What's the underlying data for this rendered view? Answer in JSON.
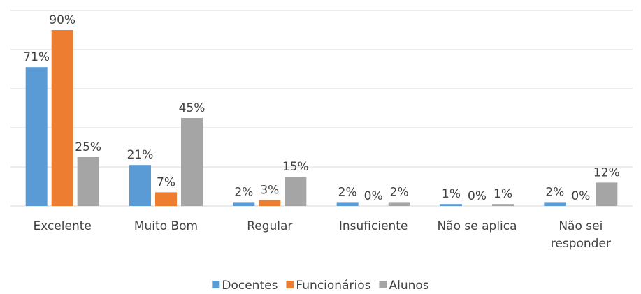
{
  "chart_data": {
    "type": "bar",
    "categories": [
      "Excelente",
      "Muito Bom",
      "Regular",
      "Insuficiente",
      "Não se aplica",
      "Não sei responder"
    ],
    "series": [
      {
        "name": "Docentes",
        "color": "#5b9bd5",
        "values": [
          71,
          21,
          2,
          2,
          1,
          2
        ],
        "value_labels": [
          "71%",
          "21%",
          "2%",
          "2%",
          "1%",
          "2%"
        ]
      },
      {
        "name": "Funcionários",
        "color": "#ed7d31",
        "values": [
          90,
          7,
          3,
          0,
          0,
          0
        ],
        "value_labels": [
          "90%",
          "7%",
          "3%",
          "0%",
          "0%",
          "0%"
        ]
      },
      {
        "name": "Alunos",
        "color": "#a5a5a5",
        "values": [
          25,
          45,
          15,
          2,
          1,
          12
        ],
        "value_labels": [
          "25%",
          "45%",
          "15%",
          "2%",
          "1%",
          "12%"
        ]
      }
    ],
    "ylim": [
      0,
      100
    ],
    "yticks": [
      0,
      20,
      40,
      60,
      80,
      100
    ],
    "grid": true,
    "legend": "bottom"
  }
}
